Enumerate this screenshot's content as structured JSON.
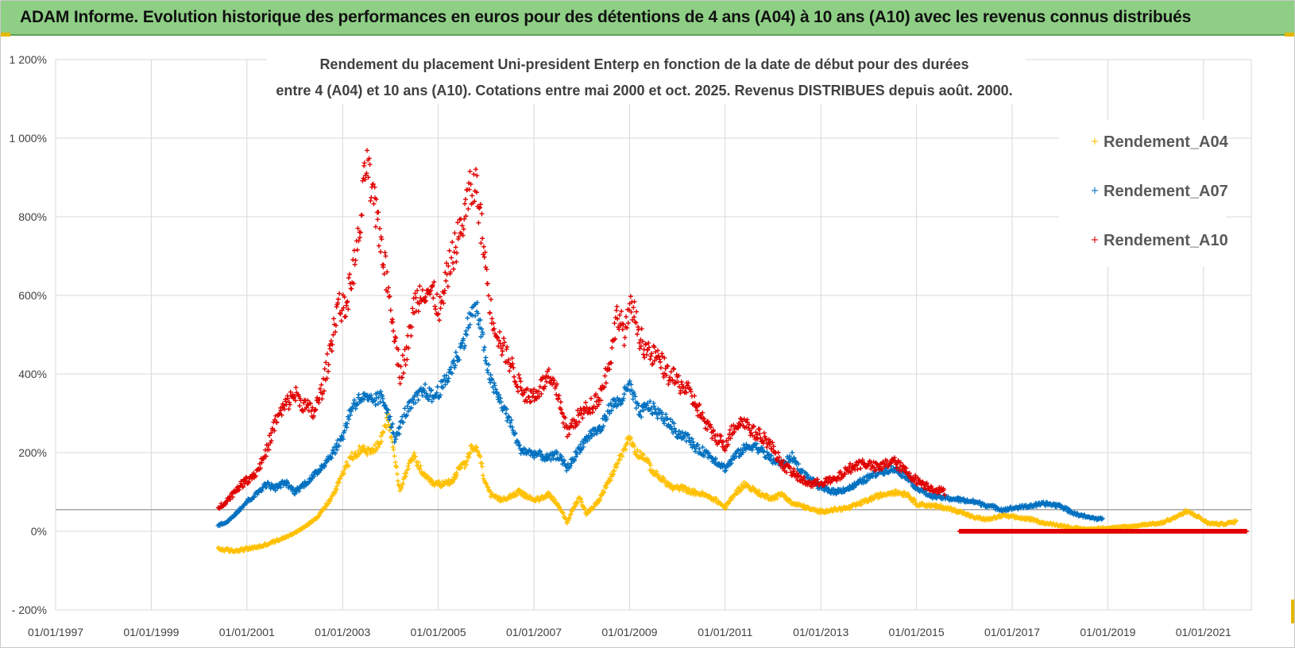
{
  "header": {
    "title": "ADAM Informe. Evolution historique des performances en euros pour des détentions de 4 ans (A04) à 10 ans (A10) avec les revenus connus distribués"
  },
  "colors": {
    "banner": "#8ecf85",
    "A04": "#ffc000",
    "A07": "#0070c0",
    "A10": "#e00000",
    "grid": "#d9d9d9",
    "reference_line": "#a6a6a6"
  },
  "chart_data": {
    "type": "scatter",
    "title_line1": "Rendement du placement Uni-president Enterp  en fonction de la date de début pour des durées",
    "title_line2": "entre 4 (A04) et 10 ans (A10). Cotations entre mai 2000 et oct. 2025. Revenus DISTRIBUES depuis août. 2000.",
    "x_range": [
      "1997-01-01",
      "2022-01-01"
    ],
    "y_range": [
      -200,
      1200
    ],
    "y_unit": "%",
    "x_ticks": [
      "01/01/1997",
      "01/01/1999",
      "01/01/2001",
      "01/01/2003",
      "01/01/2005",
      "01/01/2007",
      "01/01/2009",
      "01/01/2011",
      "01/01/2013",
      "01/01/2015",
      "01/01/2017",
      "01/01/2019",
      "01/01/2021"
    ],
    "y_ticks": [
      {
        "value": -200,
        "label": "- 200%"
      },
      {
        "value": 0,
        "label": "0%"
      },
      {
        "value": 200,
        "label": "200%"
      },
      {
        "value": 400,
        "label": "400%"
      },
      {
        "value": 600,
        "label": "600%"
      },
      {
        "value": 800,
        "label": "800%"
      },
      {
        "value": 1000,
        "label": "1 000%"
      },
      {
        "value": 1200,
        "label": "1 200%"
      }
    ],
    "reference_line_value": 55,
    "legend_position": "right",
    "series": [
      {
        "name": "Rendement_A04",
        "color": "#ffc000",
        "points": [
          [
            2000.4,
            -45
          ],
          [
            2000.7,
            -50
          ],
          [
            2001.0,
            -45
          ],
          [
            2001.3,
            -38
          ],
          [
            2001.6,
            -25
          ],
          [
            2001.9,
            -10
          ],
          [
            2002.2,
            10
          ],
          [
            2002.5,
            40
          ],
          [
            2002.8,
            90
          ],
          [
            2003.0,
            150
          ],
          [
            2003.2,
            190
          ],
          [
            2003.4,
            210
          ],
          [
            2003.6,
            200
          ],
          [
            2003.8,
            230
          ],
          [
            2003.95,
            290
          ],
          [
            2004.1,
            180
          ],
          [
            2004.2,
            100
          ],
          [
            2004.35,
            160
          ],
          [
            2004.5,
            190
          ],
          [
            2004.7,
            140
          ],
          [
            2004.9,
            120
          ],
          [
            2005.1,
            120
          ],
          [
            2005.3,
            130
          ],
          [
            2005.45,
            160
          ],
          [
            2005.6,
            175
          ],
          [
            2005.7,
            215
          ],
          [
            2005.85,
            200
          ],
          [
            2005.95,
            140
          ],
          [
            2006.1,
            90
          ],
          [
            2006.3,
            80
          ],
          [
            2006.5,
            90
          ],
          [
            2006.7,
            100
          ],
          [
            2006.9,
            85
          ],
          [
            2007.1,
            80
          ],
          [
            2007.3,
            95
          ],
          [
            2007.5,
            70
          ],
          [
            2007.7,
            20
          ],
          [
            2007.8,
            55
          ],
          [
            2007.95,
            85
          ],
          [
            2008.1,
            45
          ],
          [
            2008.3,
            70
          ],
          [
            2008.5,
            110
          ],
          [
            2008.7,
            160
          ],
          [
            2008.85,
            200
          ],
          [
            2009.0,
            240
          ],
          [
            2009.15,
            200
          ],
          [
            2009.3,
            190
          ],
          [
            2009.5,
            150
          ],
          [
            2009.7,
            130
          ],
          [
            2009.9,
            110
          ],
          [
            2010.1,
            110
          ],
          [
            2010.3,
            100
          ],
          [
            2010.5,
            95
          ],
          [
            2010.8,
            80
          ],
          [
            2011.0,
            60
          ],
          [
            2011.2,
            95
          ],
          [
            2011.4,
            120
          ],
          [
            2011.6,
            105
          ],
          [
            2011.8,
            90
          ],
          [
            2012.0,
            85
          ],
          [
            2012.2,
            95
          ],
          [
            2012.4,
            70
          ],
          [
            2012.6,
            65
          ],
          [
            2012.8,
            55
          ],
          [
            2013.0,
            50
          ],
          [
            2013.3,
            55
          ],
          [
            2013.6,
            60
          ],
          [
            2013.9,
            75
          ],
          [
            2014.2,
            90
          ],
          [
            2014.5,
            100
          ],
          [
            2014.8,
            95
          ],
          [
            2015.0,
            70
          ],
          [
            2015.3,
            65
          ],
          [
            2015.6,
            60
          ],
          [
            2015.9,
            50
          ],
          [
            2016.2,
            35
          ],
          [
            2016.5,
            30
          ],
          [
            2016.8,
            40
          ],
          [
            2017.1,
            35
          ],
          [
            2017.4,
            30
          ],
          [
            2017.7,
            20
          ],
          [
            2018.0,
            15
          ],
          [
            2018.3,
            8
          ],
          [
            2018.6,
            5
          ],
          [
            2018.9,
            8
          ],
          [
            2019.2,
            10
          ],
          [
            2019.5,
            12
          ],
          [
            2019.8,
            18
          ],
          [
            2020.1,
            20
          ],
          [
            2020.4,
            35
          ],
          [
            2020.65,
            50
          ],
          [
            2020.85,
            40
          ],
          [
            2021.1,
            20
          ],
          [
            2021.4,
            18
          ],
          [
            2021.7,
            25
          ]
        ]
      },
      {
        "name": "Rendement_A07",
        "color": "#0070c0",
        "points": [
          [
            2000.4,
            15
          ],
          [
            2000.6,
            25
          ],
          [
            2000.8,
            50
          ],
          [
            2001.0,
            75
          ],
          [
            2001.2,
            95
          ],
          [
            2001.4,
            120
          ],
          [
            2001.6,
            110
          ],
          [
            2001.8,
            125
          ],
          [
            2002.0,
            100
          ],
          [
            2002.2,
            120
          ],
          [
            2002.4,
            140
          ],
          [
            2002.6,
            170
          ],
          [
            2002.8,
            200
          ],
          [
            2003.0,
            240
          ],
          [
            2003.2,
            320
          ],
          [
            2003.4,
            340
          ],
          [
            2003.6,
            330
          ],
          [
            2003.8,
            340
          ],
          [
            2003.95,
            310
          ],
          [
            2004.1,
            230
          ],
          [
            2004.3,
            300
          ],
          [
            2004.5,
            330
          ],
          [
            2004.7,
            360
          ],
          [
            2004.9,
            340
          ],
          [
            2005.1,
            370
          ],
          [
            2005.3,
            420
          ],
          [
            2005.5,
            470
          ],
          [
            2005.65,
            540
          ],
          [
            2005.8,
            570
          ],
          [
            2005.95,
            470
          ],
          [
            2006.1,
            380
          ],
          [
            2006.3,
            330
          ],
          [
            2006.5,
            280
          ],
          [
            2006.7,
            210
          ],
          [
            2006.9,
            200
          ],
          [
            2007.1,
            195
          ],
          [
            2007.3,
            185
          ],
          [
            2007.5,
            195
          ],
          [
            2007.7,
            160
          ],
          [
            2007.85,
            190
          ],
          [
            2008.0,
            220
          ],
          [
            2008.2,
            250
          ],
          [
            2008.4,
            260
          ],
          [
            2008.6,
            320
          ],
          [
            2008.8,
            330
          ],
          [
            2009.0,
            370
          ],
          [
            2009.2,
            300
          ],
          [
            2009.4,
            320
          ],
          [
            2009.6,
            300
          ],
          [
            2009.8,
            280
          ],
          [
            2010.0,
            250
          ],
          [
            2010.2,
            240
          ],
          [
            2010.4,
            210
          ],
          [
            2010.6,
            200
          ],
          [
            2010.8,
            180
          ],
          [
            2011.0,
            160
          ],
          [
            2011.2,
            190
          ],
          [
            2011.4,
            210
          ],
          [
            2011.6,
            220
          ],
          [
            2011.8,
            200
          ],
          [
            2012.0,
            180
          ],
          [
            2012.2,
            170
          ],
          [
            2012.4,
            190
          ],
          [
            2012.6,
            150
          ],
          [
            2012.8,
            130
          ],
          [
            2013.0,
            110
          ],
          [
            2013.3,
            100
          ],
          [
            2013.6,
            110
          ],
          [
            2013.9,
            130
          ],
          [
            2014.2,
            150
          ],
          [
            2014.5,
            160
          ],
          [
            2014.8,
            140
          ],
          [
            2015.0,
            110
          ],
          [
            2015.3,
            90
          ],
          [
            2015.6,
            85
          ],
          [
            2015.9,
            80
          ],
          [
            2016.2,
            75
          ],
          [
            2016.5,
            65
          ],
          [
            2016.8,
            55
          ],
          [
            2017.1,
            60
          ],
          [
            2017.4,
            65
          ],
          [
            2017.7,
            70
          ],
          [
            2018.0,
            65
          ],
          [
            2018.3,
            45
          ],
          [
            2018.6,
            35
          ],
          [
            2018.9,
            30
          ]
        ]
      },
      {
        "name": "Rendement_A10",
        "color": "#e00000",
        "points": [
          [
            2000.4,
            60
          ],
          [
            2000.6,
            80
          ],
          [
            2000.8,
            110
          ],
          [
            2001.0,
            130
          ],
          [
            2001.2,
            150
          ],
          [
            2001.4,
            200
          ],
          [
            2001.6,
            280
          ],
          [
            2001.8,
            320
          ],
          [
            2002.0,
            350
          ],
          [
            2002.2,
            320
          ],
          [
            2002.4,
            300
          ],
          [
            2002.6,
            370
          ],
          [
            2002.75,
            470
          ],
          [
            2002.9,
            580
          ],
          [
            2003.05,
            560
          ],
          [
            2003.2,
            650
          ],
          [
            2003.35,
            750
          ],
          [
            2003.5,
            950
          ],
          [
            2003.6,
            860
          ],
          [
            2003.75,
            780
          ],
          [
            2003.9,
            660
          ],
          [
            2004.05,
            540
          ],
          [
            2004.2,
            400
          ],
          [
            2004.35,
            460
          ],
          [
            2004.5,
            580
          ],
          [
            2004.7,
            620
          ],
          [
            2004.9,
            600
          ],
          [
            2005.05,
            560
          ],
          [
            2005.2,
            660
          ],
          [
            2005.35,
            720
          ],
          [
            2005.5,
            780
          ],
          [
            2005.65,
            860
          ],
          [
            2005.8,
            880
          ],
          [
            2005.95,
            720
          ],
          [
            2006.1,
            560
          ],
          [
            2006.3,
            480
          ],
          [
            2006.5,
            430
          ],
          [
            2006.7,
            370
          ],
          [
            2006.9,
            340
          ],
          [
            2007.1,
            360
          ],
          [
            2007.3,
            390
          ],
          [
            2007.5,
            350
          ],
          [
            2007.7,
            250
          ],
          [
            2007.85,
            280
          ],
          [
            2008.0,
            300
          ],
          [
            2008.2,
            320
          ],
          [
            2008.4,
            350
          ],
          [
            2008.6,
            440
          ],
          [
            2008.75,
            560
          ],
          [
            2008.9,
            500
          ],
          [
            2009.05,
            580
          ],
          [
            2009.2,
            500
          ],
          [
            2009.4,
            450
          ],
          [
            2009.6,
            440
          ],
          [
            2009.8,
            400
          ],
          [
            2010.0,
            380
          ],
          [
            2010.2,
            360
          ],
          [
            2010.4,
            320
          ],
          [
            2010.6,
            270
          ],
          [
            2010.8,
            240
          ],
          [
            2011.0,
            220
          ],
          [
            2011.2,
            270
          ],
          [
            2011.4,
            280
          ],
          [
            2011.6,
            250
          ],
          [
            2011.8,
            240
          ],
          [
            2012.0,
            210
          ],
          [
            2012.2,
            170
          ],
          [
            2012.4,
            150
          ],
          [
            2012.6,
            130
          ],
          [
            2012.8,
            120
          ],
          [
            2013.0,
            125
          ],
          [
            2013.3,
            130
          ],
          [
            2013.6,
            160
          ],
          [
            2013.9,
            175
          ],
          [
            2014.2,
            160
          ],
          [
            2014.5,
            180
          ],
          [
            2014.8,
            150
          ],
          [
            2015.0,
            130
          ],
          [
            2015.3,
            110
          ],
          [
            2015.6,
            100
          ]
        ]
      }
    ],
    "flat_series": {
      "name": "Rendement_A10",
      "from": 2015.9,
      "to": 2021.9,
      "value": 0
    }
  }
}
